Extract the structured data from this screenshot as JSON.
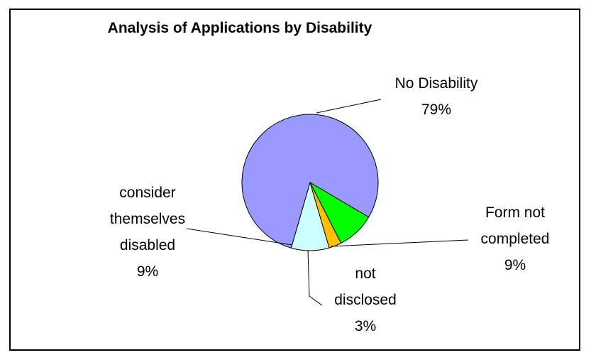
{
  "chart_data": {
    "type": "pie",
    "title": "Analysis of Applications by Disability",
    "slices": [
      {
        "label": "Form not completed",
        "value": 9,
        "color": "#00FF00",
        "label_lines": [
          "Form not",
          "completed",
          "9%"
        ]
      },
      {
        "label": "not disclosed",
        "value": 3,
        "color": "#FFC000",
        "label_lines": [
          "not",
          "disclosed",
          "3%"
        ]
      },
      {
        "label": "consider themselves disabled",
        "value": 9,
        "color": "#CCFFFF",
        "label_lines": [
          "consider",
          "themselves",
          "disabled",
          "9%"
        ]
      },
      {
        "label": "No Disability",
        "value": 79,
        "color": "#9999FF",
        "label_lines": [
          "No Disability",
          "79%"
        ]
      }
    ]
  }
}
